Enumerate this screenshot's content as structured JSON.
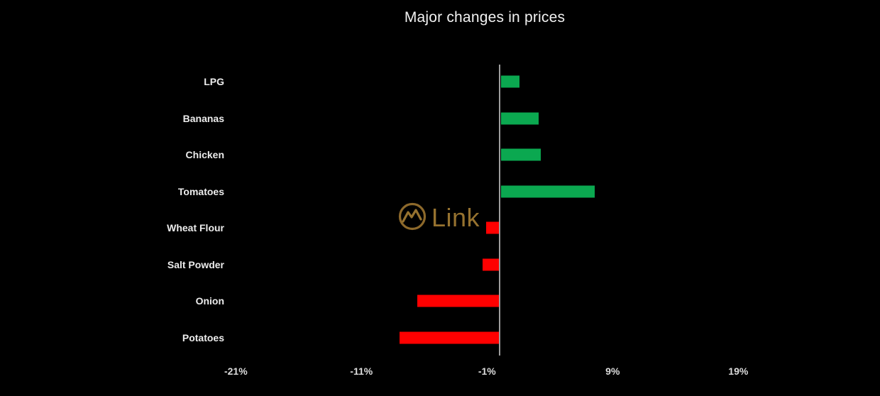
{
  "page": {
    "background": "#000000"
  },
  "header": {
    "title": "Major changes in prices"
  },
  "watermark": {
    "brand": "Link",
    "color": "#96722f",
    "icon": "mountain-circle-logo-icon"
  },
  "chart_data": {
    "type": "bar",
    "orientation": "horizontal",
    "title": "Major changes in prices",
    "categories": [
      "LPG",
      "Bananas",
      "Chicken",
      "Tomatoes",
      "Wheat Flour",
      "Salt Powder",
      "Onion",
      "Potatoes"
    ],
    "values": [
      1.5,
      3.0,
      3.2,
      7.5,
      -1.0,
      -1.3,
      -6.5,
      -7.9
    ],
    "unit": "%",
    "x_ticks": [
      {
        "label": "-21%",
        "value": -21
      },
      {
        "label": "-11%",
        "value": -11
      },
      {
        "label": "-1%",
        "value": -1
      },
      {
        "label": "9%",
        "value": 9
      },
      {
        "label": "19%",
        "value": 19
      }
    ],
    "xlim": [
      -24,
      25
    ],
    "grid": "off",
    "legend": "none",
    "colors": {
      "positive": "#0ba850",
      "negative": "#ff0000",
      "axis_line": "#9d9d9d",
      "title_text": "#f2f2f2",
      "label_text": "#ececec",
      "tick_text": "#dcdcdc",
      "background": "#000000"
    }
  }
}
